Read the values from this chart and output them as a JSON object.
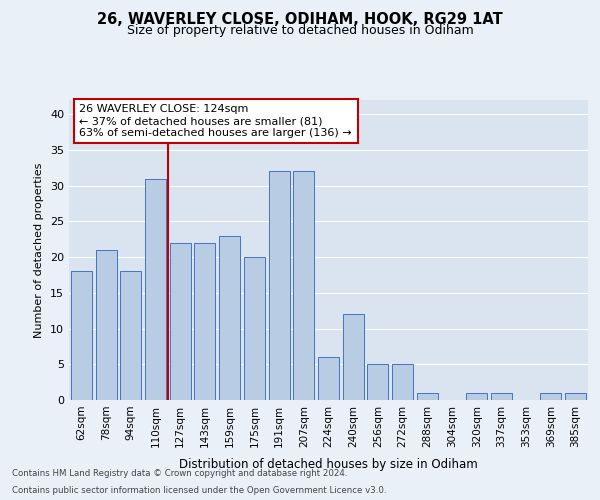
{
  "title1": "26, WAVERLEY CLOSE, ODIHAM, HOOK, RG29 1AT",
  "title2": "Size of property relative to detached houses in Odiham",
  "xlabel": "Distribution of detached houses by size in Odiham",
  "ylabel": "Number of detached properties",
  "categories": [
    "62sqm",
    "78sqm",
    "94sqm",
    "110sqm",
    "127sqm",
    "143sqm",
    "159sqm",
    "175sqm",
    "191sqm",
    "207sqm",
    "224sqm",
    "240sqm",
    "256sqm",
    "272sqm",
    "288sqm",
    "304sqm",
    "320sqm",
    "337sqm",
    "353sqm",
    "369sqm",
    "385sqm"
  ],
  "values": [
    18,
    21,
    18,
    31,
    22,
    22,
    23,
    20,
    32,
    32,
    6,
    12,
    5,
    5,
    1,
    0,
    1,
    1,
    0,
    1,
    1
  ],
  "bar_color": "#b8cce4",
  "bar_edge_color": "#4472c4",
  "vline_color": "#c00000",
  "vline_x": 3.5,
  "annotation_text": "26 WAVERLEY CLOSE: 124sqm\n← 37% of detached houses are smaller (81)\n63% of semi-detached houses are larger (136) →",
  "annotation_box_color": "#ffffff",
  "annotation_box_edge": "#c00000",
  "ylim": [
    0,
    42
  ],
  "yticks": [
    0,
    5,
    10,
    15,
    20,
    25,
    30,
    35,
    40
  ],
  "bg_color": "#eaf0f8",
  "plot_bg_color": "#d9e4f0",
  "grid_color": "#ffffff",
  "title1_fontsize": 10.5,
  "title2_fontsize": 9,
  "footer1": "Contains HM Land Registry data © Crown copyright and database right 2024.",
  "footer2": "Contains public sector information licensed under the Open Government Licence v3.0."
}
